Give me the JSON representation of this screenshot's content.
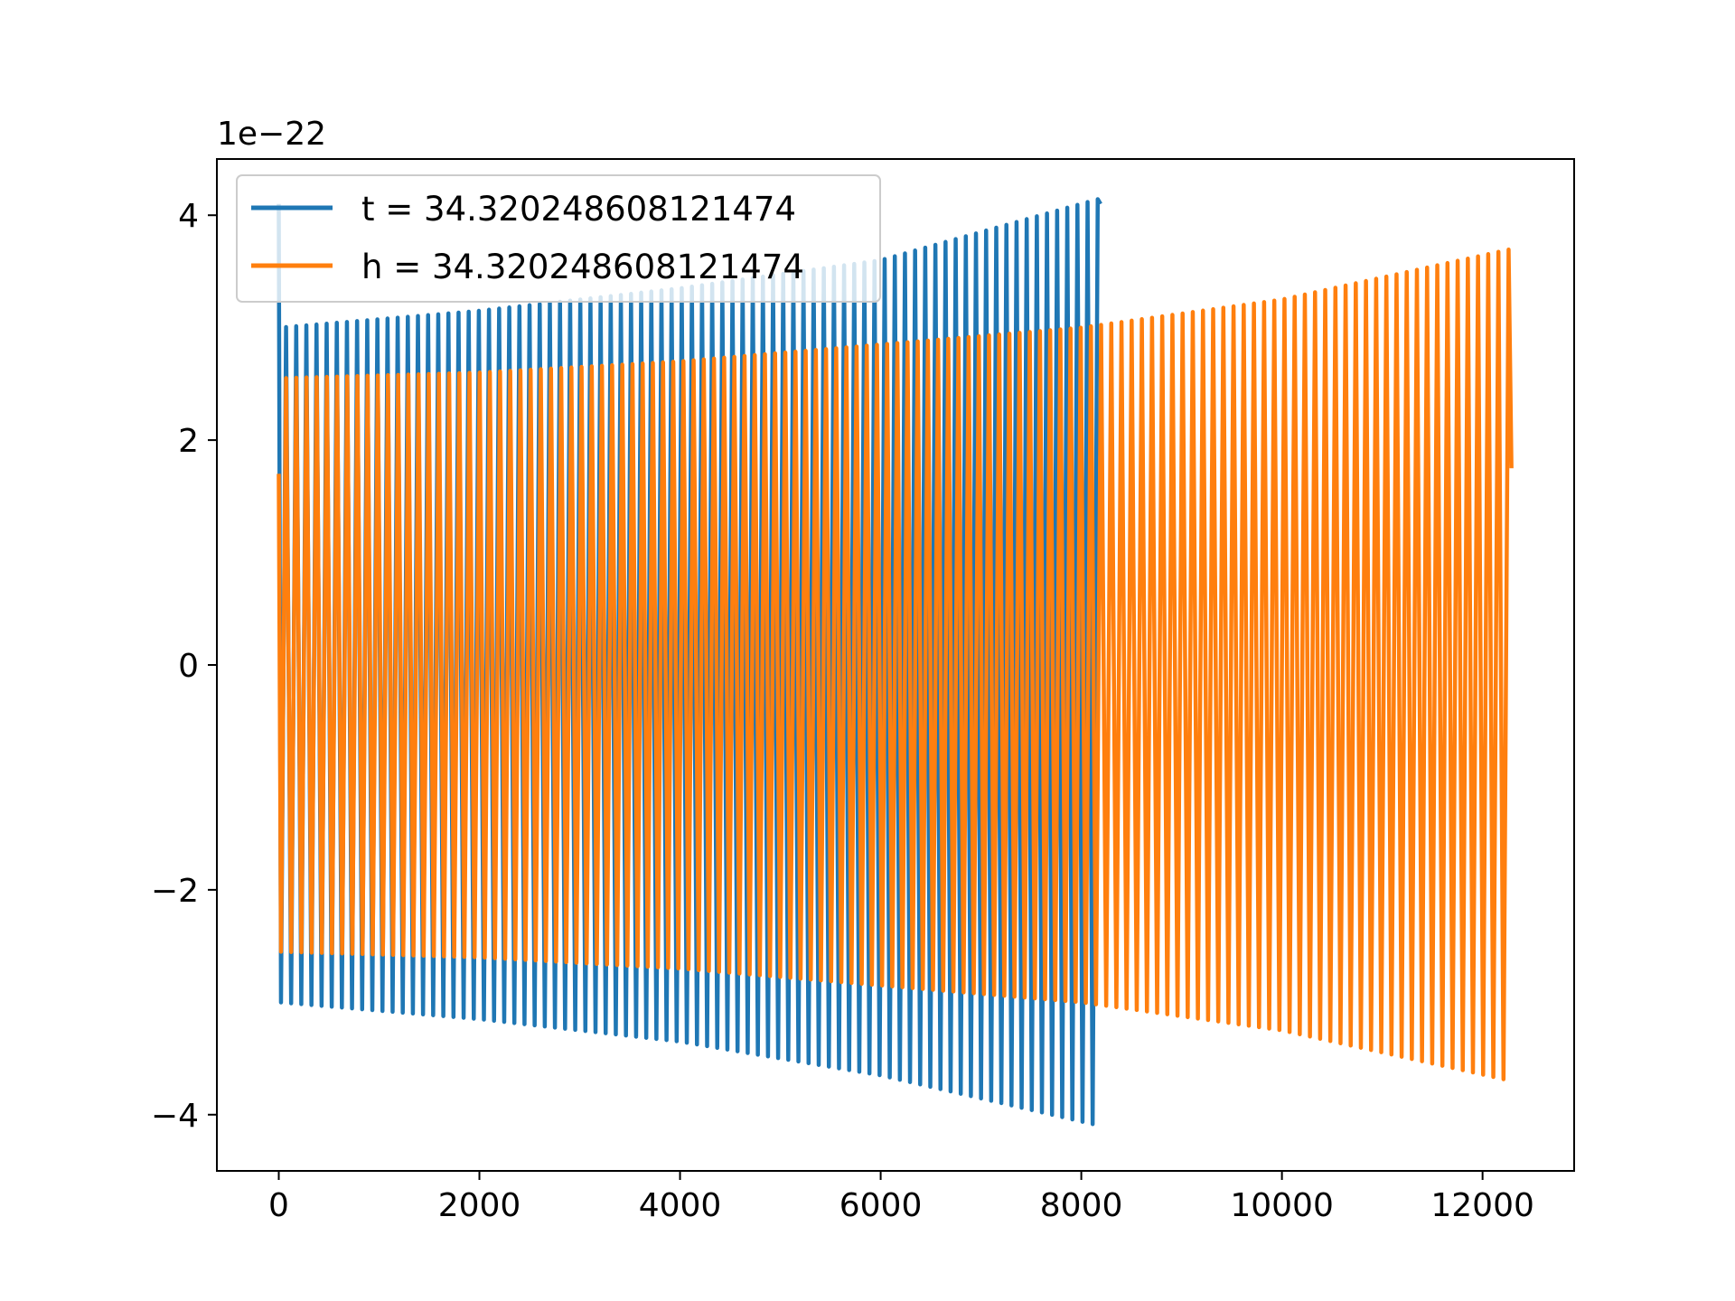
{
  "chart_data": {
    "type": "line",
    "title": "",
    "xlabel": "",
    "ylabel": "",
    "offset_text": "1e−22",
    "scale_exponent": -22,
    "xlim": [
      -617,
      12913
    ],
    "ylim": [
      -4.5e-22,
      4.5e-22
    ],
    "xticks": [
      0,
      2000,
      4000,
      6000,
      8000,
      10000,
      12000
    ],
    "xtick_labels": [
      "0",
      "2000",
      "4000",
      "6000",
      "8000",
      "10000",
      "12000"
    ],
    "yticks": [
      -4e-22,
      -2e-22,
      0,
      2e-22,
      4e-22
    ],
    "ytick_labels": [
      "−4",
      "−2",
      "0",
      "2",
      "4"
    ],
    "grid": false,
    "legend_position": "upper-left",
    "series": [
      {
        "name": "t = 34.320248608121474",
        "color": "#1f77b4",
        "x_range": [
          0,
          8192
        ],
        "cycles": 81,
        "start_value": 4.1e-22,
        "end_value": 4.1e-22,
        "envelope": [
          {
            "x": 0,
            "upper": 3e-22,
            "lower": -3e-22
          },
          {
            "x": 2000,
            "upper": 3.15e-22,
            "lower": -3.15e-22
          },
          {
            "x": 4000,
            "upper": 3.35e-22,
            "lower": -3.35e-22
          },
          {
            "x": 6000,
            "upper": 3.6e-22,
            "lower": -3.65e-22
          },
          {
            "x": 8192,
            "upper": 4.15e-22,
            "lower": -4.1e-22
          }
        ]
      },
      {
        "name": "h = 34.320248608121474",
        "color": "#ff7f0e",
        "x_range": [
          0,
          12288
        ],
        "cycles": 121,
        "start_value": 1.7e-22,
        "end_value": 1.75e-22,
        "envelope": [
          {
            "x": 0,
            "upper": 2.55e-22,
            "lower": -2.55e-22
          },
          {
            "x": 2000,
            "upper": 2.6e-22,
            "lower": -2.6e-22
          },
          {
            "x": 4000,
            "upper": 2.7e-22,
            "lower": -2.7e-22
          },
          {
            "x": 6000,
            "upper": 2.85e-22,
            "lower": -2.85e-22
          },
          {
            "x": 8000,
            "upper": 3e-22,
            "lower": -3e-22
          },
          {
            "x": 10000,
            "upper": 3.25e-22,
            "lower": -3.25e-22
          },
          {
            "x": 12288,
            "upper": 3.7e-22,
            "lower": -3.7e-22
          }
        ]
      }
    ]
  }
}
